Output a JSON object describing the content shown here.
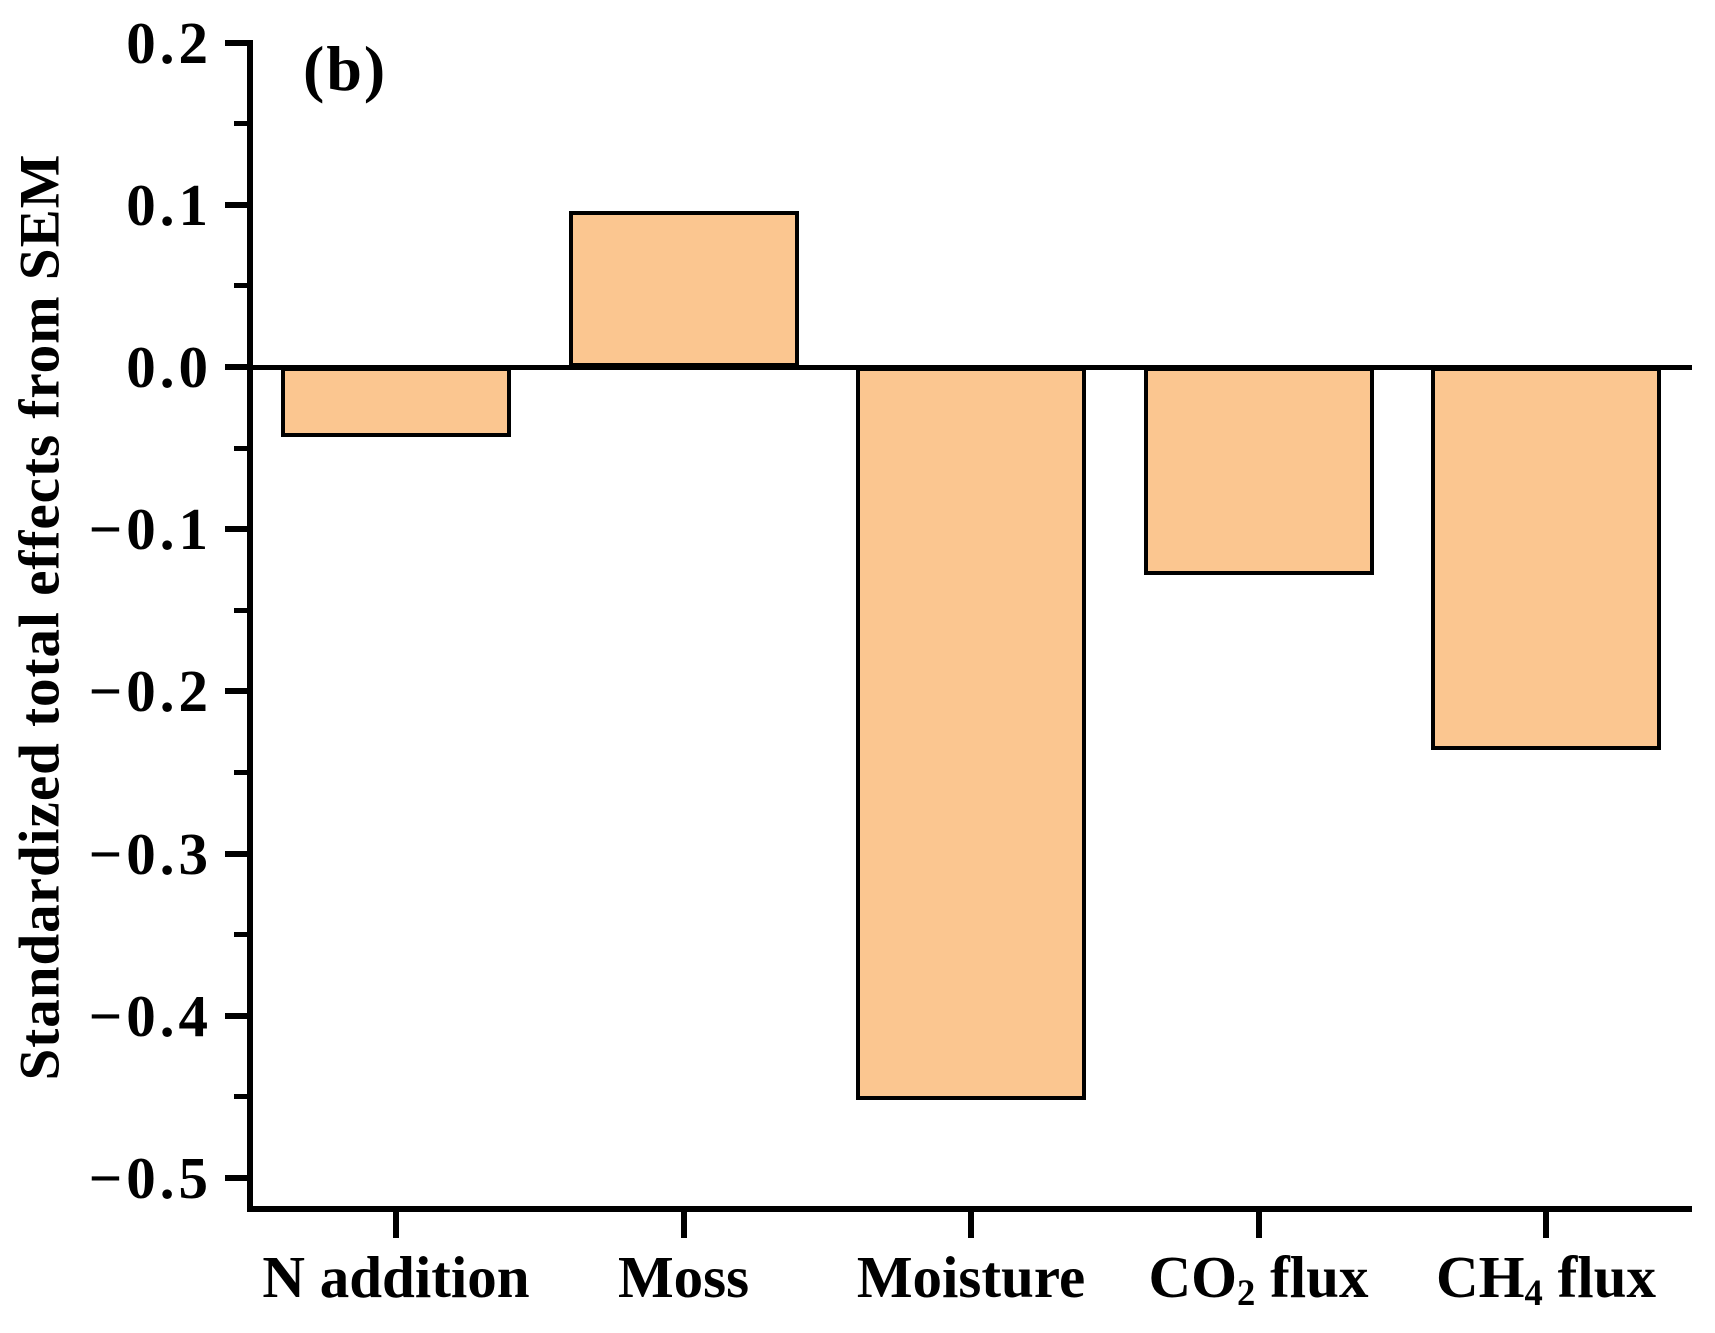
{
  "figure": {
    "panel_label": "(b)",
    "background_color": "#FFFFFF",
    "axis_color": "#000000"
  },
  "y_axis": {
    "title": "Standardized total effects from SEM",
    "major_ticks": [
      {
        "value": 0.2,
        "label": "0.2"
      },
      {
        "value": 0.1,
        "label": "0.1"
      },
      {
        "value": 0.0,
        "label": "0.0"
      },
      {
        "value": -0.1,
        "label": "−0.1"
      },
      {
        "value": -0.2,
        "label": "−0.2"
      },
      {
        "value": -0.3,
        "label": "−0.3"
      },
      {
        "value": -0.4,
        "label": "−0.4"
      },
      {
        "value": -0.5,
        "label": "−0.5"
      }
    ],
    "minor_ticks": [
      0.15,
      0.05,
      -0.05,
      -0.15,
      -0.25,
      -0.35,
      -0.45
    ]
  },
  "chart_data": {
    "type": "bar",
    "title": "",
    "xlabel": "",
    "ylabel": "Standardized total effects from SEM",
    "categories": [
      "N addition",
      "Moss",
      "Moisture",
      "CO2 flux",
      "CH4 flux"
    ],
    "categories_rich": [
      {
        "text": "N addition",
        "sub": "",
        "rest": ""
      },
      {
        "text": "Moss",
        "sub": "",
        "rest": ""
      },
      {
        "text": "Moisture",
        "sub": "",
        "rest": ""
      },
      {
        "text": "CO",
        "sub": "2",
        "rest": " flux"
      },
      {
        "text": "CH",
        "sub": "4",
        "rest": " flux"
      }
    ],
    "values": [
      -0.043,
      0.096,
      -0.452,
      -0.128,
      -0.236
    ],
    "ylim": [
      -0.52,
      0.2
    ],
    "zero_line": true,
    "grid": false,
    "legend": null,
    "bar_color": "#FBC690",
    "bar_edge_color": "#000000"
  }
}
